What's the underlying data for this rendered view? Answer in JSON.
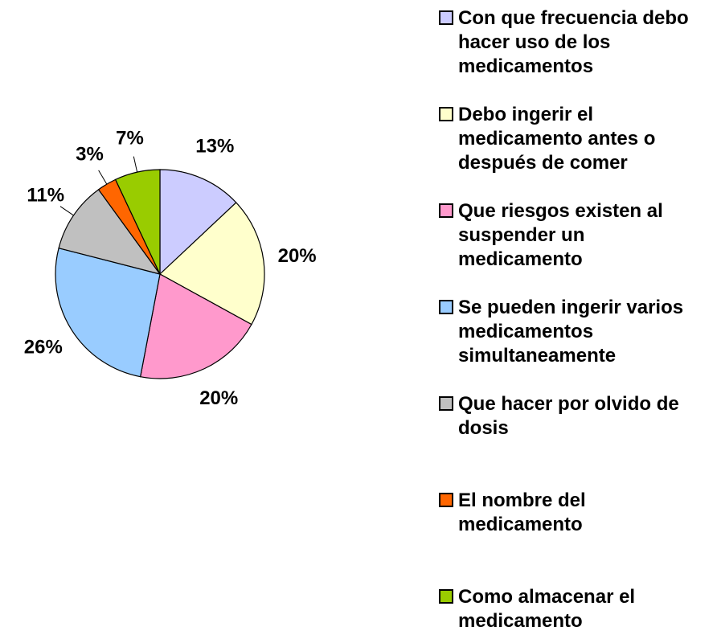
{
  "chart_data": {
    "type": "pie",
    "categories": [
      "Con que frecuencia debo hacer uso de los medicamentos",
      "Debo ingerir el medicamento antes o después de comer",
      "Que riesgos existen al suspender un medicamento",
      "Se pueden ingerir varios medicamentos simultaneamente",
      "Que hacer por olvido de dosis",
      "El nombre del medicamento",
      "Como almacenar el medicamento"
    ],
    "values": [
      13,
      20,
      20,
      26,
      11,
      3,
      7
    ],
    "value_labels": [
      "13%",
      "20%",
      "20%",
      "26%",
      "11%",
      "3%",
      "7%"
    ],
    "colors": [
      "#ccccff",
      "#ffffcc",
      "#ff99cc",
      "#99ccff",
      "#c0c0c0",
      "#ff6600",
      "#99cc00"
    ],
    "legend": "right"
  }
}
